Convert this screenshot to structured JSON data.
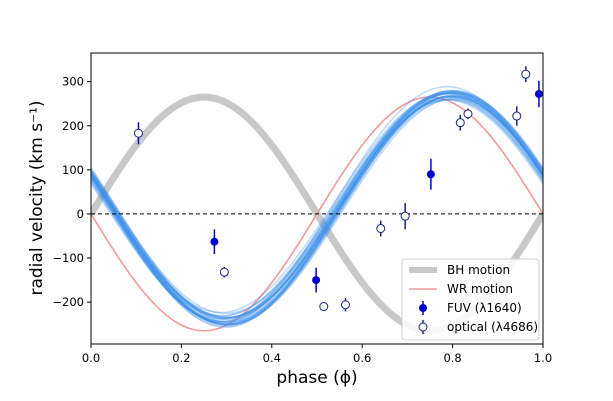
{
  "chart_data": {
    "type": "line",
    "xlabel": "phase (ϕ)",
    "ylabel": "radial velocity (km s⁻¹)",
    "xlim": [
      0.0,
      1.0
    ],
    "ylim": [
      -295,
      365
    ],
    "xticks": [
      "0.0",
      "0.2",
      "0.4",
      "0.6",
      "0.8",
      "1.0"
    ],
    "yticks": [
      "−200",
      "−100",
      "0",
      "100",
      "200",
      "300"
    ],
    "xtick_values": [
      0.0,
      0.2,
      0.4,
      0.6,
      0.8,
      1.0
    ],
    "ytick_values": [
      -200,
      -100,
      0,
      100,
      200,
      300
    ],
    "zero_line": {
      "y": 0,
      "style": "dashed"
    },
    "legend_position": "lower-right",
    "models": {
      "bh_motion": {
        "name": "BH motion",
        "amplitude": 265,
        "form": "K*sin(2*pi*phase)",
        "color": "#c8c8c8"
      },
      "wr_motion": {
        "name": "WR motion",
        "amplitude": 265,
        "form": "-K*sin(2*pi*phase)",
        "color": "#f49a9a"
      },
      "fit_band": {
        "amplitude_mean": 257,
        "phase_offset_mean": 0.203,
        "center_mean": 15,
        "samples": 28,
        "color": "#3b8fe8"
      }
    },
    "series": [
      {
        "name": "FUV (λ1640)",
        "marker": "filled",
        "color": "#0000cd",
        "points": [
          {
            "x": 0.105,
            "y": 183,
            "err": 25
          },
          {
            "x": 0.273,
            "y": -63,
            "err": 28
          },
          {
            "x": 0.498,
            "y": -150,
            "err": 28
          },
          {
            "x": 0.752,
            "y": 90,
            "err": 35
          },
          {
            "x": 0.991,
            "y": 272,
            "err": 30
          }
        ]
      },
      {
        "name": "optical (λ4686)",
        "marker": "open",
        "color": "#1a237e",
        "points": [
          {
            "x": 0.105,
            "y": 183,
            "err": 10
          },
          {
            "x": 0.295,
            "y": -132,
            "err": 12
          },
          {
            "x": 0.515,
            "y": -210,
            "err": 10
          },
          {
            "x": 0.563,
            "y": -206,
            "err": 15
          },
          {
            "x": 0.641,
            "y": -33,
            "err": 18
          },
          {
            "x": 0.695,
            "y": -5,
            "err": 30
          },
          {
            "x": 0.817,
            "y": 207,
            "err": 18
          },
          {
            "x": 0.834,
            "y": 227,
            "err": 12
          },
          {
            "x": 0.942,
            "y": 222,
            "err": 22
          },
          {
            "x": 0.962,
            "y": 317,
            "err": 18
          }
        ]
      }
    ]
  }
}
